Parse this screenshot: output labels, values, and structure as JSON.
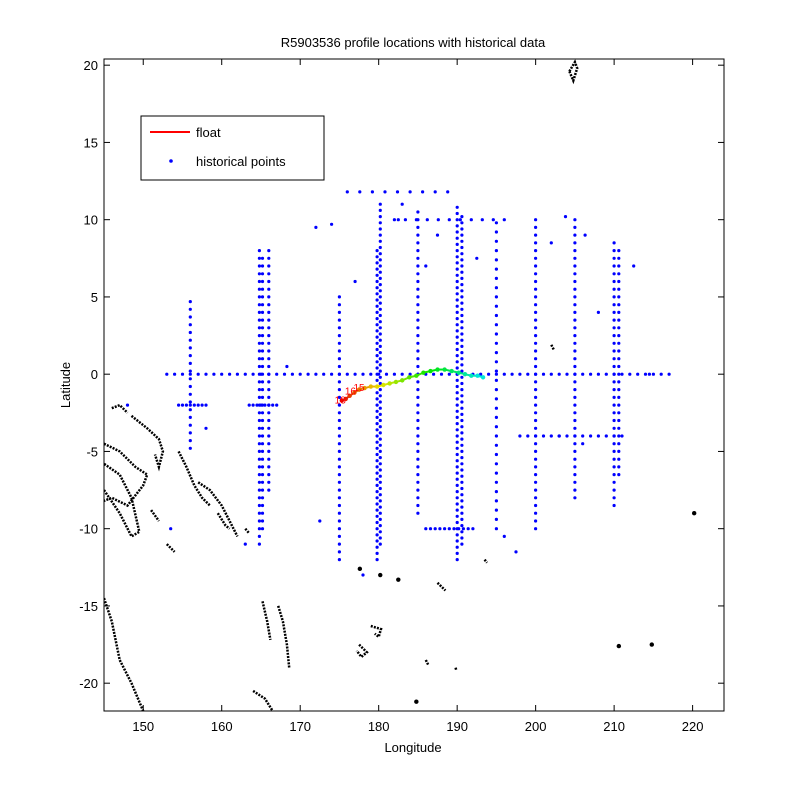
{
  "chart_data": {
    "type": "scatter",
    "title": "R5903536 profile locations with historical data",
    "xlabel": "Longitude",
    "ylabel": "Latitude",
    "xlim": [
      145,
      224
    ],
    "ylim": [
      -21.8,
      20.4
    ],
    "xticks": [
      150,
      160,
      170,
      180,
      190,
      200,
      210,
      220
    ],
    "yticks": [
      -20,
      -15,
      -10,
      -5,
      0,
      5,
      10,
      15,
      20
    ],
    "legend_position": "top-left",
    "grid": false,
    "legend": [
      {
        "label": "float",
        "color": "#ff0000",
        "marker": "line"
      },
      {
        "label": "historical points",
        "color": "#0000ff",
        "marker": "dot"
      }
    ],
    "series": [
      {
        "name": "float",
        "color": "#ff0000",
        "points": [
          [
            175.3,
            -1.7
          ],
          [
            175.8,
            -1.6
          ],
          [
            176.3,
            -1.4
          ],
          [
            176.9,
            -1.2
          ],
          [
            177.5,
            -1.0
          ],
          [
            178.2,
            -0.9
          ],
          [
            179.0,
            -0.8
          ],
          [
            179.8,
            -0.8
          ],
          [
            180.6,
            -0.7
          ],
          [
            181.4,
            -0.6
          ],
          [
            182.2,
            -0.5
          ],
          [
            183.0,
            -0.4
          ],
          [
            183.9,
            -0.2
          ],
          [
            184.8,
            -0.1
          ],
          [
            185.7,
            0.1
          ],
          [
            186.6,
            0.2
          ],
          [
            187.5,
            0.3
          ],
          [
            188.4,
            0.3
          ],
          [
            189.3,
            0.2
          ],
          [
            190.2,
            0.1
          ],
          [
            191.0,
            0.0
          ],
          [
            191.8,
            -0.1
          ],
          [
            192.6,
            -0.1
          ],
          [
            193.3,
            -0.2
          ]
        ],
        "labels": [
          {
            "text": "18",
            "x": 175.1,
            "y": -1.9
          },
          {
            "text": "16",
            "x": 176.4,
            "y": -1.3
          },
          {
            "text": "15",
            "x": 177.5,
            "y": -1.1
          }
        ]
      },
      {
        "name": "historical points",
        "color": "#0000ff",
        "columns": [
          {
            "x": 156.0,
            "y_from": -4.8,
            "y_to": 5.0,
            "step": 0.5
          },
          {
            "x": 164.8,
            "y_from": -11.0,
            "y_to": 8.0,
            "step": 0.5
          },
          {
            "x": 165.2,
            "y_from": -10.0,
            "y_to": 7.5,
            "step": 0.5
          },
          {
            "x": 166.0,
            "y_from": -7.5,
            "y_to": 8.0,
            "step": 0.5
          },
          {
            "x": 175.0,
            "y_from": -12.0,
            "y_to": 5.0,
            "step": 0.5
          },
          {
            "x": 179.8,
            "y_from": -12.0,
            "y_to": 8.0,
            "step": 0.4
          },
          {
            "x": 180.2,
            "y_from": -11.0,
            "y_to": 11.0,
            "step": 0.4
          },
          {
            "x": 185.0,
            "y_from": -9.0,
            "y_to": 10.5,
            "step": 0.5
          },
          {
            "x": 190.0,
            "y_from": -12.0,
            "y_to": 11.0,
            "step": 0.4
          },
          {
            "x": 190.6,
            "y_from": -11.0,
            "y_to": 10.5,
            "step": 0.4
          },
          {
            "x": 195.0,
            "y_from": -10.0,
            "y_to": 10.0,
            "step": 0.6
          },
          {
            "x": 200.0,
            "y_from": -10.0,
            "y_to": 10.0,
            "step": 0.5
          },
          {
            "x": 205.0,
            "y_from": -8.0,
            "y_to": 10.0,
            "step": 0.5
          },
          {
            "x": 210.0,
            "y_from": -8.5,
            "y_to": 8.5,
            "step": 0.5
          },
          {
            "x": 210.6,
            "y_from": -6.5,
            "y_to": 8.0,
            "step": 0.5
          }
        ],
        "rows": [
          {
            "y": 0.0,
            "x_from": 153.0,
            "x_to": 217.0,
            "step": 1.0
          },
          {
            "y": -2.0,
            "x_from": 154.5,
            "x_to": 158.0,
            "step": 0.5
          },
          {
            "y": -2.0,
            "x_from": 163.5,
            "x_to": 167.0,
            "step": 0.5
          },
          {
            "y": -4.0,
            "x_from": 198.0,
            "x_to": 211.0,
            "step": 1.0
          },
          {
            "y": -10.0,
            "x_from": 186.0,
            "x_to": 192.0,
            "step": 0.6
          },
          {
            "y": 10.0,
            "x_from": 182.0,
            "x_to": 196.0,
            "step": 1.4
          },
          {
            "y": 11.8,
            "x_from": 176.0,
            "x_to": 190.0,
            "step": 1.6
          }
        ],
        "scattered": [
          [
            158.0,
            -3.5
          ],
          [
            163.0,
            -11.0
          ],
          [
            168.3,
            0.5
          ],
          [
            172.0,
            9.5
          ],
          [
            172.5,
            -9.5
          ],
          [
            174.0,
            9.7
          ],
          [
            177.0,
            6.0
          ],
          [
            178.0,
            -13.0
          ],
          [
            182.5,
            10.0
          ],
          [
            183.0,
            11.0
          ],
          [
            186.0,
            7.0
          ],
          [
            187.5,
            9.0
          ],
          [
            192.5,
            7.5
          ],
          [
            196.0,
            -10.5
          ],
          [
            197.5,
            -11.5
          ],
          [
            202.0,
            8.5
          ],
          [
            203.0,
            -4.0
          ],
          [
            206.0,
            -4.5
          ],
          [
            208.0,
            4.0
          ],
          [
            212.5,
            7.0
          ],
          [
            214.5,
            0.0
          ],
          [
            203.8,
            10.2
          ],
          [
            206.3,
            9.0
          ],
          [
            153.5,
            -10.0
          ],
          [
            148.0,
            -2.0
          ]
        ]
      }
    ],
    "coastlines": {
      "color": "#000000",
      "paths": [
        [
          [
            145.0,
            -4.5
          ],
          [
            147.0,
            -5.0
          ],
          [
            149.0,
            -6.0
          ],
          [
            150.5,
            -6.5
          ],
          [
            150.0,
            -7.2
          ],
          [
            148.0,
            -8.5
          ],
          [
            146.0,
            -8.0
          ],
          [
            145.0,
            -8.2
          ]
        ],
        [
          [
            145.0,
            -7.5
          ],
          [
            147.0,
            -9.0
          ],
          [
            148.5,
            -10.5
          ],
          [
            149.5,
            -10.2
          ],
          [
            148.5,
            -8.0
          ],
          [
            147.0,
            -6.5
          ],
          [
            145.0,
            -5.8
          ]
        ],
        [
          [
            145.0,
            -14.5
          ],
          [
            146.0,
            -16.0
          ],
          [
            147.0,
            -18.5
          ],
          [
            148.5,
            -20.0
          ],
          [
            150.0,
            -21.8
          ]
        ],
        [
          [
            146.0,
            -2.2
          ],
          [
            147.0,
            -2.0
          ],
          [
            148.0,
            -2.5
          ]
        ],
        [
          [
            148.5,
            -2.7
          ],
          [
            150.5,
            -3.5
          ],
          [
            152.0,
            -4.2
          ],
          [
            152.5,
            -5.0
          ],
          [
            152.0,
            -6.0
          ],
          [
            151.5,
            -5.2
          ]
        ],
        [
          [
            154.5,
            -5.0
          ],
          [
            155.5,
            -6.0
          ],
          [
            156.5,
            -7.2
          ],
          [
            157.5,
            -8.0
          ],
          [
            158.5,
            -8.5
          ]
        ],
        [
          [
            157.0,
            -7.0
          ],
          [
            158.5,
            -7.5
          ],
          [
            160.0,
            -8.5
          ],
          [
            161.0,
            -9.5
          ],
          [
            162.0,
            -10.5
          ]
        ],
        [
          [
            159.5,
            -9.0
          ],
          [
            160.5,
            -9.8
          ],
          [
            161.0,
            -10.0
          ]
        ],
        [
          [
            151.0,
            -8.8
          ],
          [
            152.0,
            -9.5
          ]
        ],
        [
          [
            153.0,
            -11.0
          ],
          [
            154.0,
            -11.5
          ]
        ],
        [
          [
            163.0,
            -10.0
          ],
          [
            163.5,
            -10.3
          ]
        ],
        [
          [
            165.2,
            -14.7
          ],
          [
            165.8,
            -16.0
          ],
          [
            166.2,
            -17.2
          ]
        ],
        [
          [
            167.2,
            -15.0
          ],
          [
            167.8,
            -16.0
          ],
          [
            168.3,
            -17.5
          ],
          [
            168.6,
            -19.0
          ]
        ],
        [
          [
            164.0,
            -20.5
          ],
          [
            165.5,
            -21.0
          ],
          [
            166.5,
            -21.8
          ]
        ],
        [
          [
            179.0,
            -16.3
          ],
          [
            180.3,
            -16.5
          ],
          [
            180.0,
            -17.0
          ],
          [
            179.5,
            -16.8
          ]
        ],
        [
          [
            177.5,
            -17.5
          ],
          [
            178.5,
            -18.0
          ],
          [
            177.8,
            -18.3
          ],
          [
            177.2,
            -17.9
          ]
        ],
        [
          [
            186.0,
            -18.5
          ],
          [
            186.3,
            -18.8
          ]
        ],
        [
          [
            187.5,
            -13.5
          ],
          [
            188.5,
            -14.0
          ]
        ],
        [
          [
            189.8,
            -19.0
          ],
          [
            189.9,
            -19.2
          ]
        ],
        [
          [
            193.5,
            -12.0
          ],
          [
            193.8,
            -12.2
          ]
        ],
        [
          [
            204.3,
            19.6
          ],
          [
            205.0,
            20.2
          ],
          [
            205.3,
            19.8
          ],
          [
            204.8,
            19.0
          ],
          [
            204.3,
            19.6
          ]
        ],
        [
          [
            202.0,
            1.9
          ],
          [
            202.3,
            1.6
          ]
        ],
        [
          [
            220.2,
            -9.0
          ]
        ],
        [
          [
            210.6,
            -17.6
          ]
        ],
        [
          [
            214.8,
            -17.5
          ]
        ],
        [
          [
            184.8,
            -21.2
          ]
        ],
        [
          [
            177.6,
            -12.6
          ]
        ],
        [
          [
            182.5,
            -13.3
          ]
        ],
        [
          [
            180.2,
            -13.0
          ]
        ]
      ]
    }
  }
}
